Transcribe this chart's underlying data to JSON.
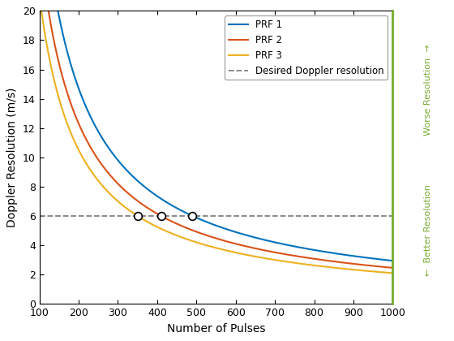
{
  "xlabel": "Number of Pulses",
  "ylabel": "Doppler Resolution (m/s)",
  "right_label_top": "Worse Resolution  →",
  "right_label_bottom": "←  Better Resolution",
  "xlim": [
    100,
    1000
  ],
  "ylim": [
    0,
    20
  ],
  "yticks": [
    0,
    2,
    4,
    6,
    8,
    10,
    12,
    14,
    16,
    18,
    20
  ],
  "xticks": [
    100,
    200,
    300,
    400,
    500,
    600,
    700,
    800,
    900,
    1000
  ],
  "desired_resolution": 6.0,
  "prf_constants": [
    2940,
    2460,
    2100
  ],
  "prf_labels": [
    "PRF 1",
    "PRF 2",
    "PRF 3"
  ],
  "prf_colors": [
    "#0072BD",
    "#D95319",
    "#EDB120"
  ],
  "dashed_color": "#808080",
  "right_axis_color": "#77AC30",
  "legend_dashed_label": "Desired Doppler resolution",
  "line_width": 1.5,
  "figsize": [
    5.6,
    4.2
  ],
  "dpi": 100
}
